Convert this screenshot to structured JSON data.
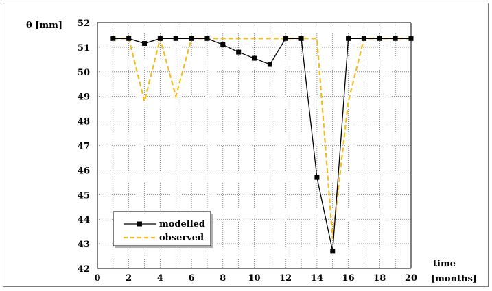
{
  "chart_data": {
    "type": "line",
    "ylabel": "θ  [mm]",
    "xlabel_line1": "time",
    "xlabel_line2": "[months]",
    "xlim": [
      0,
      20
    ],
    "ylim": [
      42,
      52
    ],
    "xticks": [
      0,
      2,
      4,
      6,
      8,
      10,
      12,
      14,
      16,
      18,
      20
    ],
    "yticks": [
      42,
      43,
      44,
      45,
      46,
      47,
      48,
      49,
      50,
      51,
      52
    ],
    "grid": true,
    "legend_position": "bottom-left",
    "series": [
      {
        "name": "modelled",
        "color": "#000000",
        "style": "solid",
        "marker": "square",
        "x": [
          1,
          2,
          3,
          4,
          5,
          6,
          7,
          8,
          9,
          10,
          11,
          12,
          13,
          14,
          15,
          16,
          17,
          18,
          19,
          20
        ],
        "y": [
          51.35,
          51.35,
          51.15,
          51.35,
          51.35,
          51.35,
          51.35,
          51.1,
          50.8,
          50.55,
          50.3,
          51.35,
          51.35,
          45.7,
          42.7,
          51.35,
          51.35,
          51.35,
          51.35,
          51.35
        ]
      },
      {
        "name": "observed",
        "color": "#f5bc1c",
        "style": "dashed",
        "marker": "none",
        "x": [
          1,
          2,
          3,
          4,
          5,
          6,
          7,
          8,
          9,
          10,
          11,
          12,
          13,
          14,
          15,
          16,
          17,
          18,
          19,
          20
        ],
        "y": [
          51.35,
          51.35,
          48.8,
          51.35,
          49.0,
          51.35,
          51.35,
          51.35,
          51.35,
          51.35,
          51.35,
          51.35,
          51.35,
          51.35,
          43.2,
          48.8,
          51.35,
          51.35,
          51.35,
          51.35
        ]
      }
    ]
  }
}
